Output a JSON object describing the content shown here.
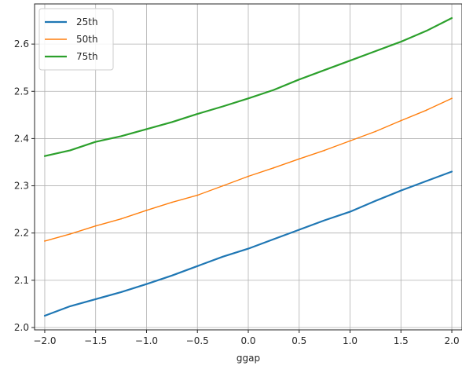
{
  "chart_data": {
    "type": "line",
    "title": "",
    "xlabel": "ggap",
    "ylabel": "",
    "xlim": [
      -2.1,
      2.1
    ],
    "ylim": [
      1.995,
      2.685
    ],
    "grid": true,
    "legend_position": "top-left",
    "x_ticks": [
      -2.0,
      -1.5,
      -1.0,
      -0.5,
      0.0,
      0.5,
      1.0,
      1.5,
      2.0
    ],
    "x_tick_labels": [
      "−2.0",
      "−1.5",
      "−1.0",
      "−0.5",
      "0.0",
      "0.5",
      "1.0",
      "1.5",
      "2.0"
    ],
    "y_ticks": [
      2.0,
      2.1,
      2.2,
      2.3,
      2.4,
      2.5,
      2.6
    ],
    "y_tick_labels": [
      "2.0",
      "2.1",
      "2.2",
      "2.3",
      "2.4",
      "2.5",
      "2.6"
    ],
    "x": [
      -2.0,
      -1.75,
      -1.5,
      -1.25,
      -1.0,
      -0.75,
      -0.5,
      -0.25,
      0.0,
      0.25,
      0.5,
      0.75,
      1.0,
      1.25,
      1.5,
      1.75,
      2.0
    ],
    "series": [
      {
        "name": "25th",
        "color": "#1f77b4",
        "width": 2.2,
        "values": [
          2.025,
          2.045,
          2.06,
          2.075,
          2.092,
          2.11,
          2.13,
          2.15,
          2.167,
          2.187,
          2.207,
          2.227,
          2.245,
          2.268,
          2.29,
          2.31,
          2.33
        ]
      },
      {
        "name": "50th",
        "color": "#ff7f0e",
        "width": 1.4,
        "values": [
          2.183,
          2.198,
          2.215,
          2.23,
          2.248,
          2.265,
          2.28,
          2.3,
          2.32,
          2.338,
          2.357,
          2.375,
          2.395,
          2.415,
          2.438,
          2.46,
          2.485
        ]
      },
      {
        "name": "75th",
        "color": "#2ca02c",
        "width": 2.2,
        "values": [
          2.363,
          2.375,
          2.393,
          2.405,
          2.42,
          2.435,
          2.452,
          2.468,
          2.485,
          2.503,
          2.525,
          2.545,
          2.565,
          2.585,
          2.605,
          2.628,
          2.655
        ]
      }
    ]
  }
}
